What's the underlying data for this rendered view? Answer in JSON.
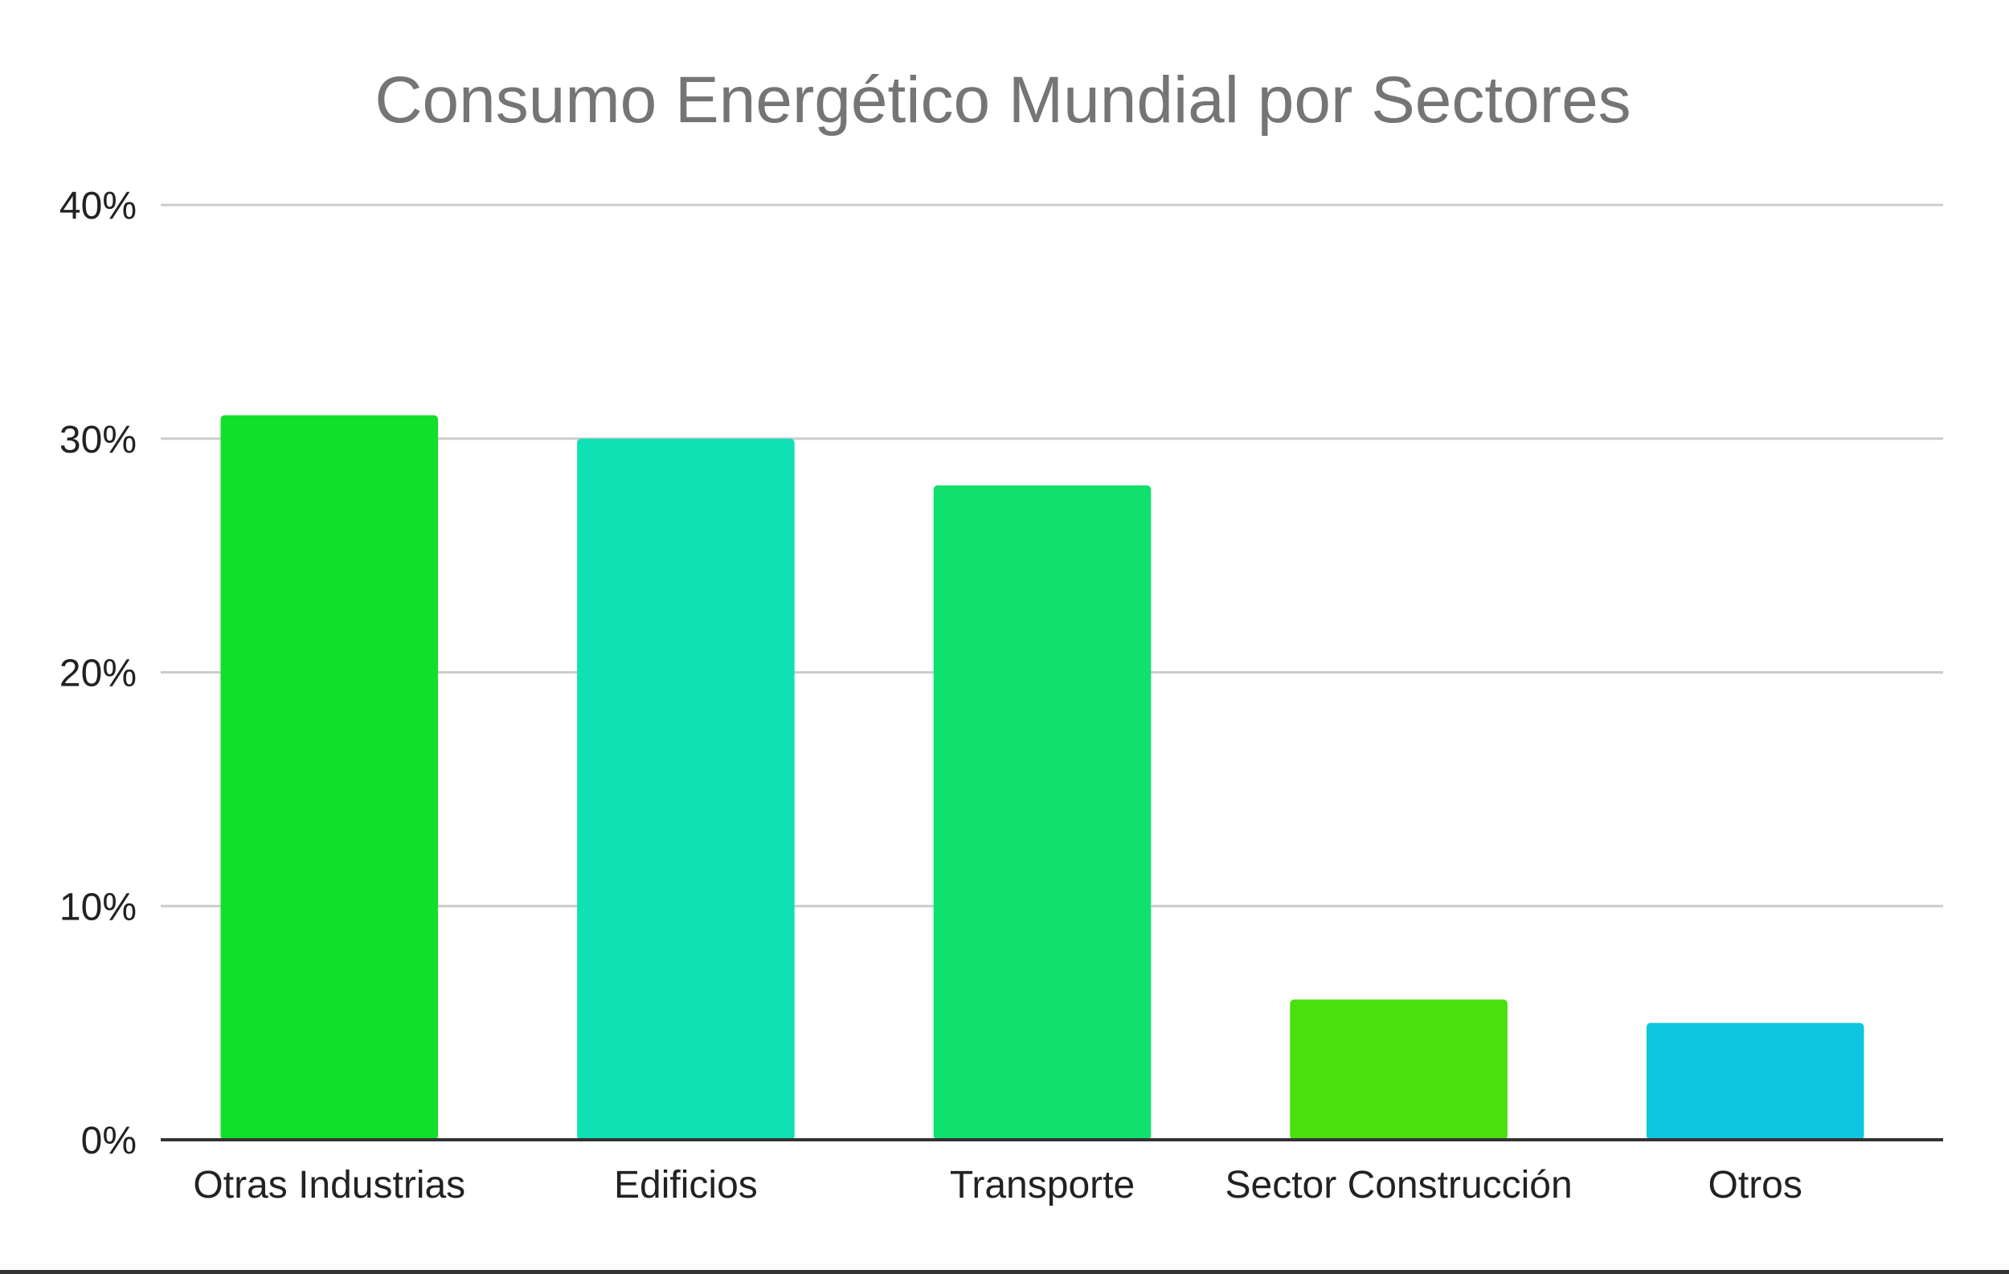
{
  "chart_data": {
    "type": "bar",
    "title": "Consumo Energético Mundial por Sectores",
    "xlabel": "",
    "ylabel": "",
    "categories": [
      "Otras Industrias",
      "Edificios",
      "Transporte",
      "Sector Construcción",
      "Otros"
    ],
    "values": [
      31,
      30,
      28,
      6,
      5
    ],
    "value_unit": "%",
    "ylim": [
      0,
      40
    ],
    "yticks": [
      0,
      10,
      20,
      30,
      40
    ],
    "ytick_labels": [
      "0%",
      "10%",
      "20%",
      "30%",
      "40%"
    ],
    "grid": true,
    "legend": "none",
    "bar_colors": [
      "#11e02a",
      "#0fe1b4",
      "#10e06e",
      "#4ae00e",
      "#0ec6e0"
    ]
  },
  "colors": {
    "title": "#757575",
    "gridline": "#cccccc",
    "axis": "#333333",
    "tick_text": "#222222",
    "background": "#ffffff"
  }
}
